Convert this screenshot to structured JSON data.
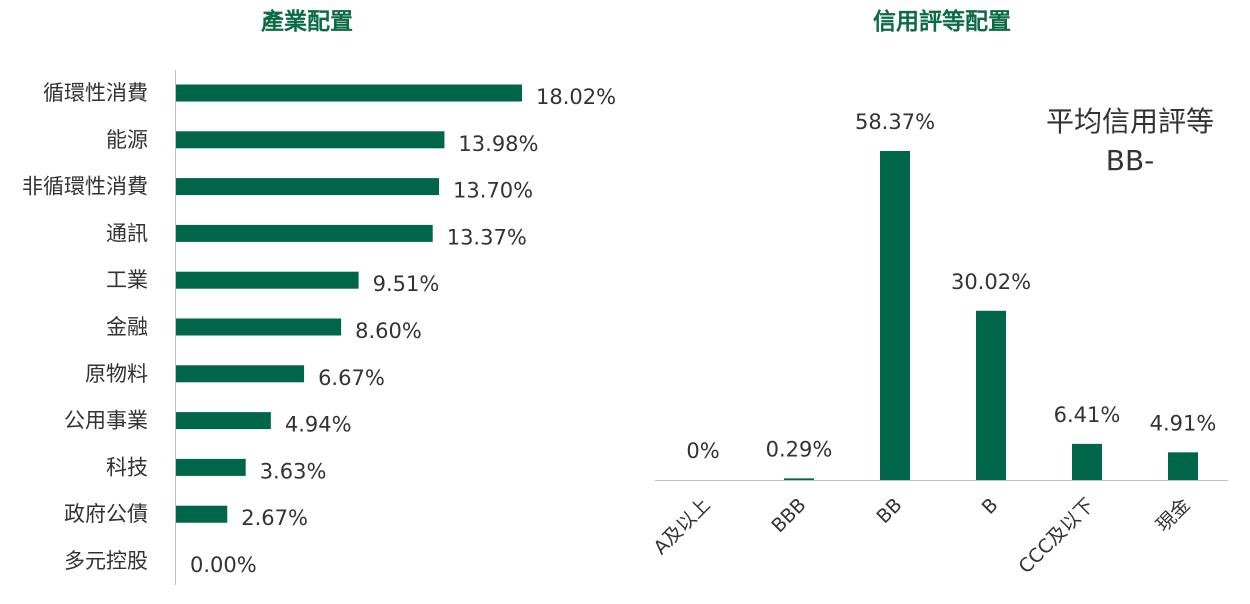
{
  "chart_data": [
    {
      "type": "bar",
      "orientation": "horizontal",
      "title": "產業配置",
      "categories": [
        "循環性消費",
        "能源",
        "非循環性消費",
        "通訊",
        "工業",
        "金融",
        "原物料",
        "公用事業",
        "科技",
        "政府公債",
        "多元控股"
      ],
      "values": [
        18.02,
        13.98,
        13.7,
        13.37,
        9.51,
        8.6,
        6.67,
        4.94,
        3.63,
        2.67,
        0.0
      ],
      "labels": [
        "18.02%",
        "13.98%",
        "13.70%",
        "13.37%",
        "9.51%",
        "8.60%",
        "6.67%",
        "4.94%",
        "3.63%",
        "2.67%",
        "0.00%"
      ],
      "color": "#00664a",
      "grid": false
    },
    {
      "type": "bar",
      "title": "信用評等配置",
      "categories": [
        "A及以上",
        "BBB",
        "BB",
        "B",
        "CCC及以下",
        "現金"
      ],
      "values": [
        0,
        0.29,
        58.37,
        30.02,
        6.41,
        4.91
      ],
      "labels": [
        "0%",
        "0.29%",
        "58.37%",
        "30.02%",
        "6.41%",
        "4.91%"
      ],
      "color": "#00664a",
      "grid": false,
      "annotation": {
        "label": "平均信用評等",
        "value": "BB-"
      }
    }
  ],
  "colors": {
    "title": "#0b6b45",
    "bar": "#00664a",
    "axis": "#bfbfbf"
  }
}
